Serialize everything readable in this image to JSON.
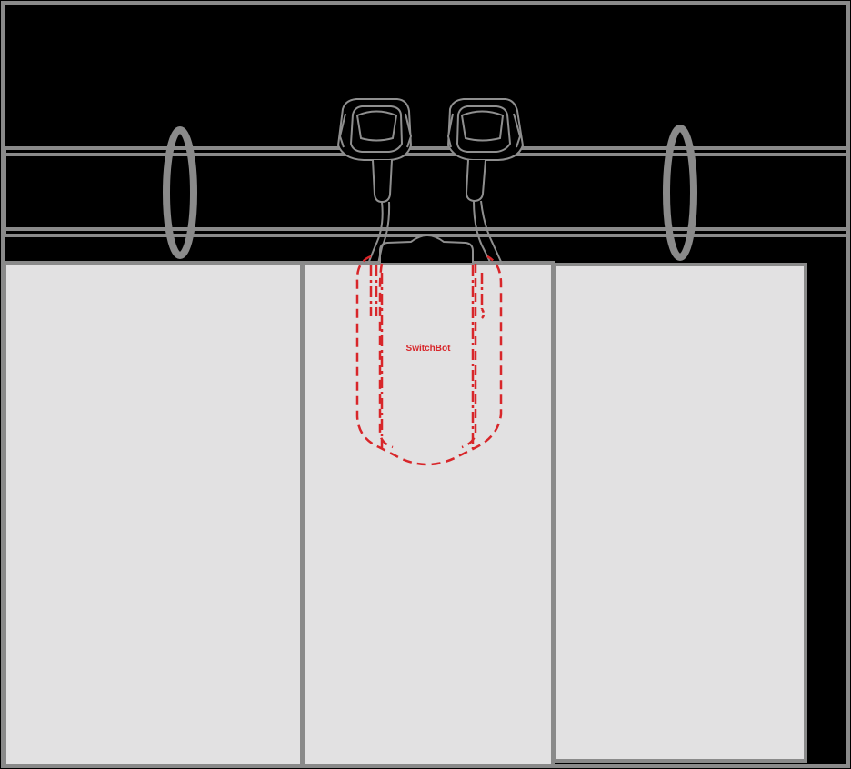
{
  "device": {
    "label": "SwitchBot"
  },
  "colors": {
    "background": "#000000",
    "frame_stroke": "#8a8a8a",
    "panel_fill": "#e2e1e2",
    "device_line": "#8f8f8f",
    "hidden_line": "#d8262a"
  },
  "icons": [
    "rod-end-ring",
    "curtain-rod",
    "curtain-panel",
    "curtain-clip",
    "switchbot-device"
  ]
}
